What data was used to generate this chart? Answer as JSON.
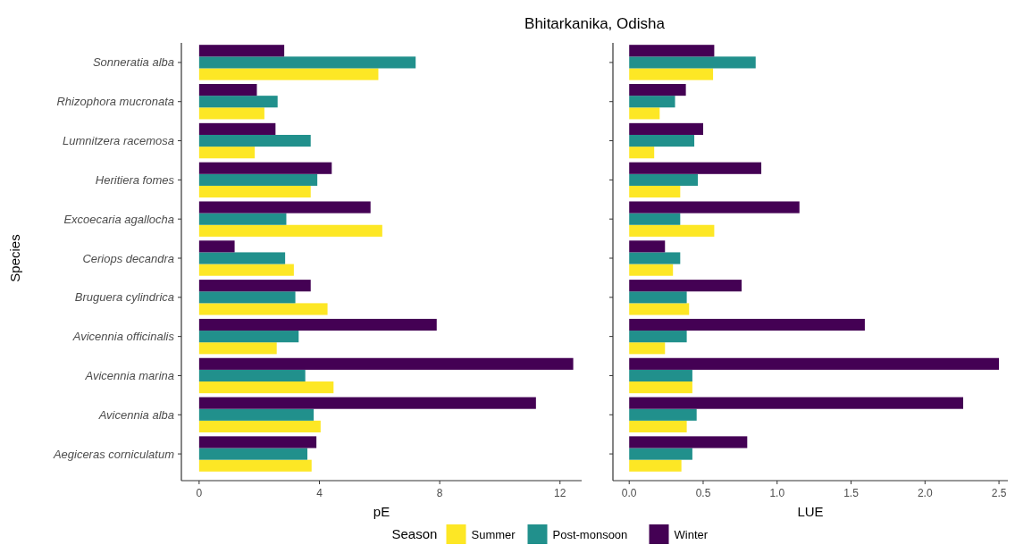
{
  "chart_data": [
    {
      "type": "bar",
      "orientation": "horizontal",
      "title": "Bhitarkanika, Odisha",
      "xlabel": "pE",
      "ylabel": "Species",
      "legend_title": "Season",
      "legend": "bottom",
      "grid": false,
      "categories": [
        "Sonneratia alba",
        "Rhizophora mucronata",
        "Lumnitzera racemosa",
        "Heritiera fomes",
        "Excoecaria agallocha",
        "Ceriops decandra",
        "Bruguera cylindrica",
        "Avicennia officinalis",
        "Avicennia marina",
        "Avicennia alba",
        "Aegiceras corniculatum"
      ],
      "xlim": [
        -0.59,
        12.72
      ],
      "xticks": [
        0,
        4,
        8,
        12
      ],
      "series": [
        {
          "name": "Summer",
          "color": "#fde725",
          "values": [
            5.96,
            2.17,
            1.85,
            3.71,
            6.09,
            3.15,
            4.27,
            2.58,
            4.47,
            4.04,
            3.74
          ]
        },
        {
          "name": "Post-monsoon",
          "color": "#21908c",
          "values": [
            7.2,
            2.61,
            3.71,
            3.93,
            2.9,
            2.86,
            3.2,
            3.31,
            3.53,
            3.81,
            3.6
          ]
        },
        {
          "name": "Winter",
          "color": "#440154",
          "values": [
            2.83,
            1.92,
            2.54,
            4.41,
            5.7,
            1.18,
            3.71,
            7.9,
            12.44,
            11.2,
            3.9
          ]
        }
      ]
    },
    {
      "type": "bar",
      "orientation": "horizontal",
      "xlabel": "LUE",
      "tick_labels": "x",
      "grid": false,
      "categories": [
        null,
        null,
        null,
        null,
        null,
        null,
        null,
        null,
        null,
        null,
        null
      ],
      "xlim": [
        -0.11,
        2.56
      ],
      "xticks": [
        {
          "value": 0,
          "label": "0.0"
        },
        0.5,
        {
          "value": 1,
          "label": "1.0"
        },
        1.5,
        {
          "value": 2,
          "label": "2.0"
        },
        2.5
      ],
      "series": [
        {
          "color": "#fde725",
          "values": [
            0.567,
            0.206,
            0.169,
            0.345,
            0.575,
            0.296,
            0.405,
            0.242,
            0.427,
            0.389,
            0.353
          ]
        },
        {
          "color": "#21908c",
          "values": [
            0.855,
            0.31,
            0.44,
            0.464,
            0.345,
            0.345,
            0.389,
            0.389,
            0.427,
            0.456,
            0.427
          ]
        },
        {
          "color": "#440154",
          "values": [
            0.575,
            0.383,
            0.5,
            0.893,
            1.151,
            0.242,
            0.76,
            1.593,
            2.5,
            2.258,
            0.798
          ]
        }
      ]
    }
  ]
}
